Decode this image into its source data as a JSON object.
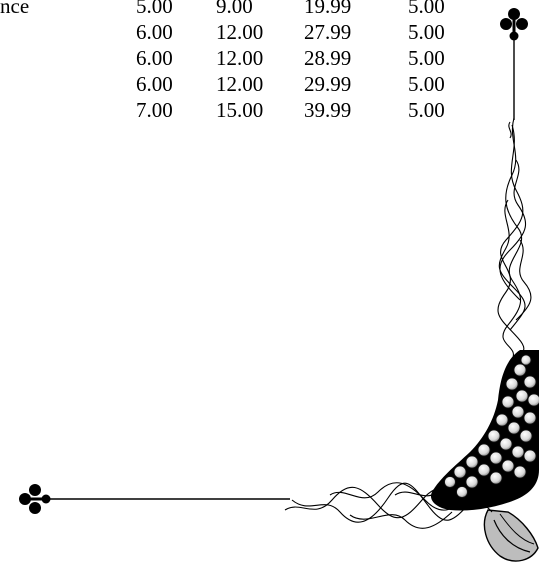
{
  "price_table": {
    "rows": [
      {
        "label": "nce",
        "values": [
          "5.00",
          "9.00",
          "19.99",
          "5.00"
        ]
      },
      {
        "label": "",
        "values": [
          "6.00",
          "12.00",
          "27.99",
          "5.00"
        ]
      },
      {
        "label": "",
        "values": [
          "6.00",
          "12.00",
          "28.99",
          "5.00"
        ]
      },
      {
        "label": "",
        "values": [
          "6.00",
          "12.00",
          "29.99",
          "5.00"
        ]
      },
      {
        "label": "",
        "values": [
          "7.00",
          "15.00",
          "39.99",
          "5.00"
        ]
      }
    ]
  },
  "ornament": {
    "icon": "floral-corner-border-icon",
    "colors": {
      "ink": "#000000",
      "shade": "#bdbdbd",
      "highlight": "#e6e6e6"
    }
  }
}
